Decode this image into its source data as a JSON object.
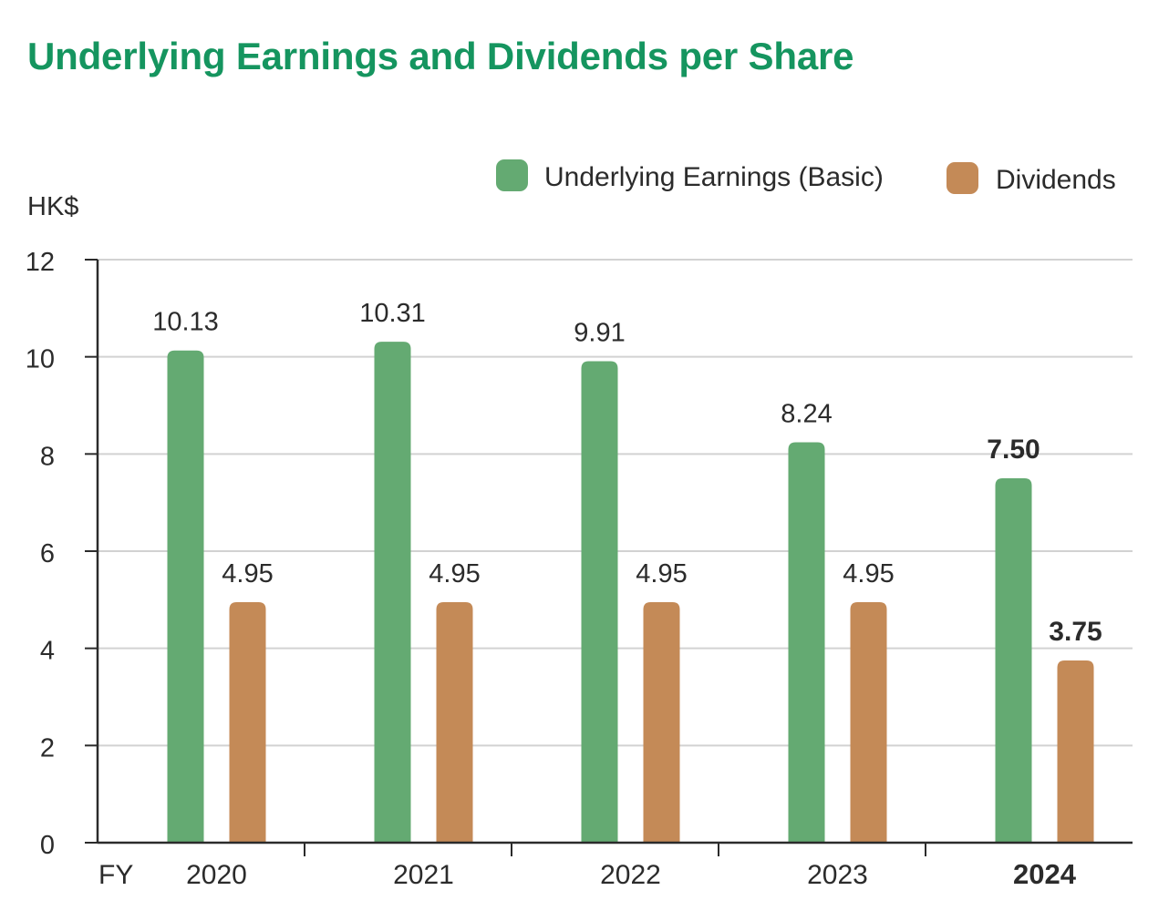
{
  "chart_data": {
    "type": "bar",
    "title": "Underlying Earnings and Dividends per Share",
    "unit_label": "HK$",
    "x_prefix": "FY",
    "categories": [
      "2020",
      "2021",
      "2022",
      "2023",
      "2024"
    ],
    "highlight_category": "2024",
    "series": [
      {
        "name": "Underlying Earnings (Basic)",
        "color": "#64aa72",
        "values": [
          10.13,
          10.31,
          9.91,
          8.24,
          7.5
        ],
        "labels": [
          "10.13",
          "10.31",
          "9.91",
          "8.24",
          "7.50"
        ]
      },
      {
        "name": "Dividends",
        "color": "#c48a57",
        "values": [
          4.95,
          4.95,
          4.95,
          4.95,
          3.75
        ],
        "labels": [
          "4.95",
          "4.95",
          "4.95",
          "4.95",
          "3.75"
        ]
      }
    ],
    "ylim": [
      0,
      12
    ],
    "yticks": [
      "0",
      "2",
      "4",
      "6",
      "8",
      "10",
      "12"
    ],
    "grid": true,
    "legend_position": "top-right"
  }
}
